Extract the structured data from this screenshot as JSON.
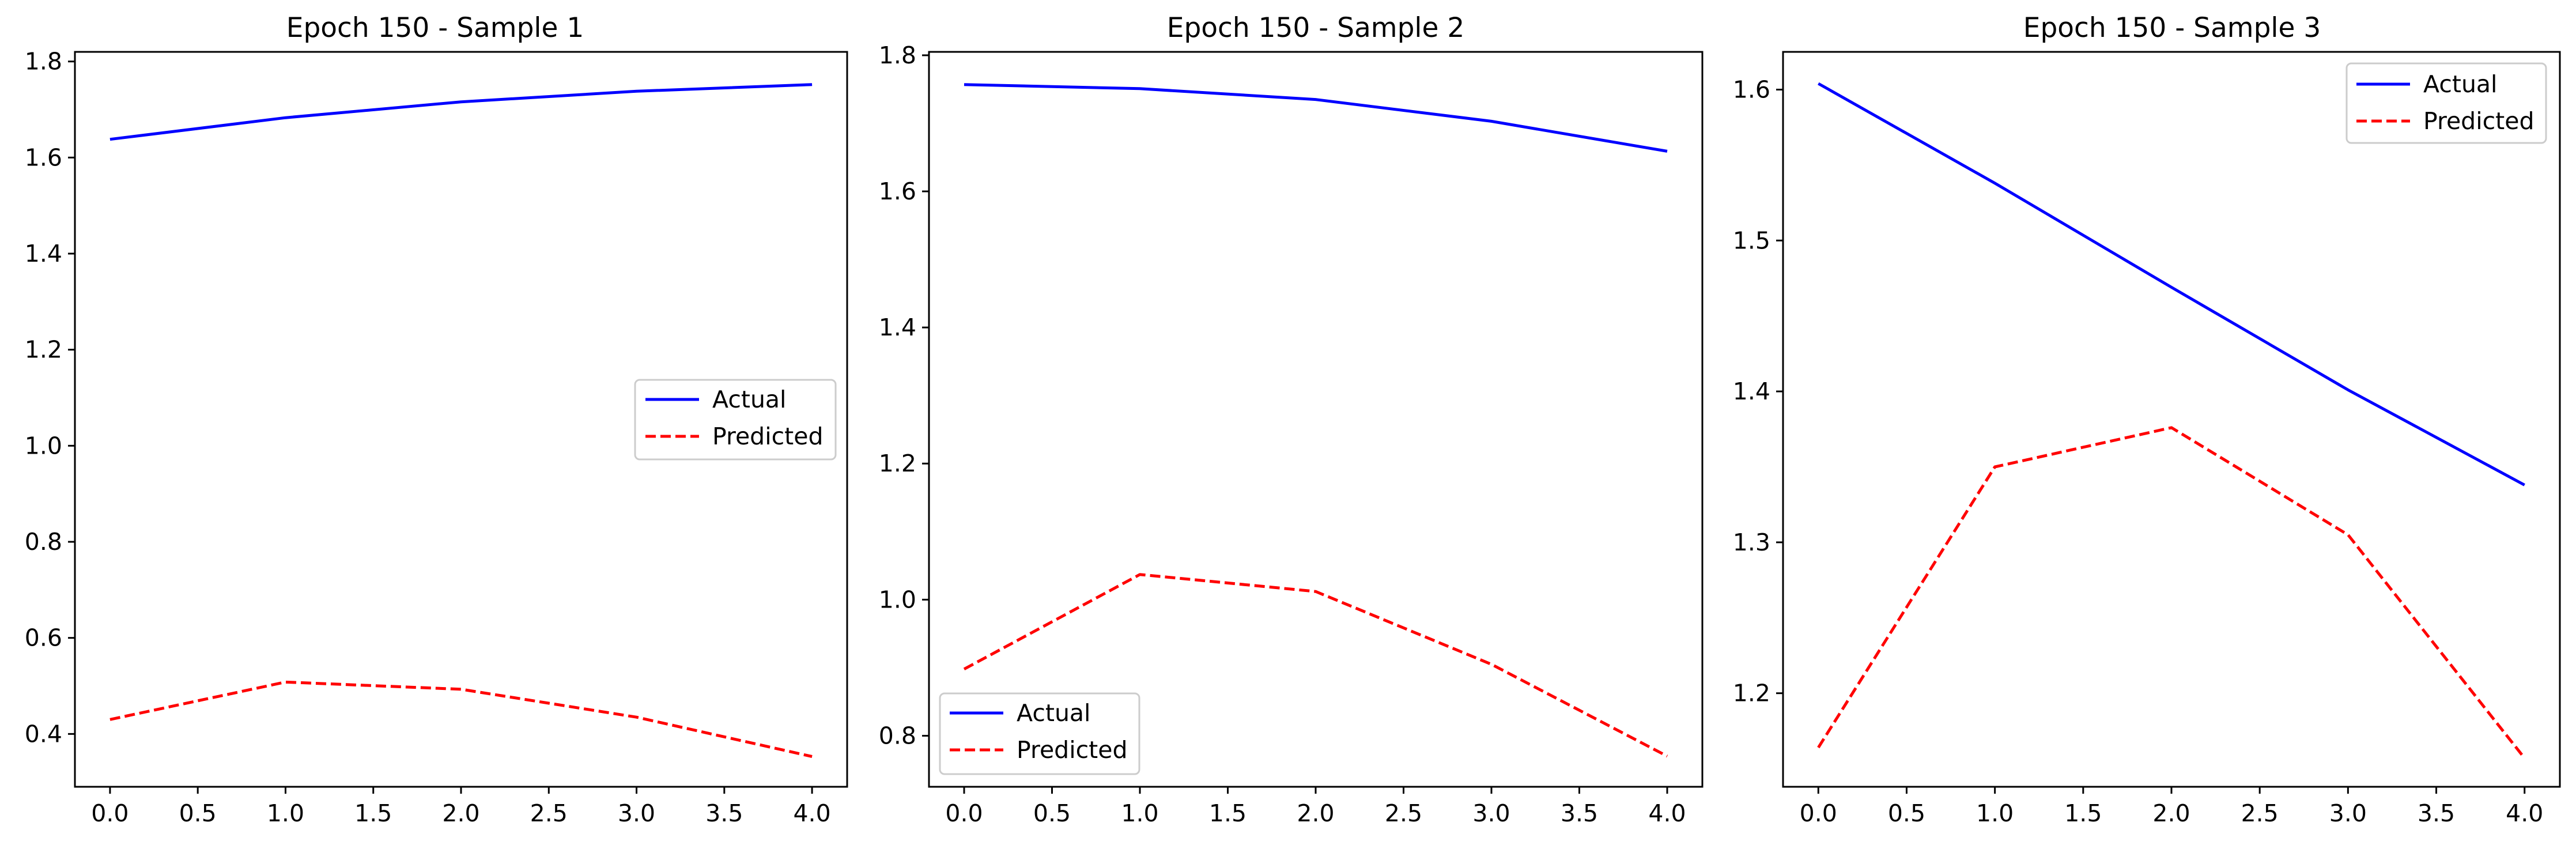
{
  "chart_data": [
    {
      "type": "line",
      "title": "Epoch 150 - Sample 1",
      "xlabel": "",
      "ylabel": "",
      "x": [
        0,
        1,
        2,
        3,
        4
      ],
      "xlim": [
        -0.2,
        4.2
      ],
      "ylim": [
        0.29,
        1.82
      ],
      "xticks": [
        0.0,
        0.5,
        1.0,
        1.5,
        2.0,
        2.5,
        3.0,
        3.5,
        4.0
      ],
      "xtick_labels": [
        "0.0",
        "0.5",
        "1.0",
        "1.5",
        "2.0",
        "2.5",
        "3.0",
        "3.5",
        "4.0"
      ],
      "yticks": [
        0.4,
        0.6,
        0.8,
        1.0,
        1.2,
        1.4,
        1.6,
        1.8
      ],
      "ytick_labels": [
        "0.4",
        "0.6",
        "0.8",
        "1.0",
        "1.2",
        "1.4",
        "1.6",
        "1.8"
      ],
      "grid": false,
      "legend_position": "center-right",
      "series": [
        {
          "name": "Actual",
          "color": "#0000ff",
          "style": "solid",
          "values": [
            1.638,
            1.683,
            1.716,
            1.738,
            1.752
          ]
        },
        {
          "name": "Predicted",
          "color": "#ff0000",
          "style": "dashed",
          "values": [
            0.43,
            0.508,
            0.493,
            0.435,
            0.353
          ]
        }
      ]
    },
    {
      "type": "line",
      "title": "Epoch 150 - Sample 2",
      "xlabel": "",
      "ylabel": "",
      "x": [
        0,
        1,
        2,
        3,
        4
      ],
      "xlim": [
        -0.2,
        4.2
      ],
      "ylim": [
        0.725,
        1.805
      ],
      "xticks": [
        0.0,
        0.5,
        1.0,
        1.5,
        2.0,
        2.5,
        3.0,
        3.5,
        4.0
      ],
      "xtick_labels": [
        "0.0",
        "0.5",
        "1.0",
        "1.5",
        "2.0",
        "2.5",
        "3.0",
        "3.5",
        "4.0"
      ],
      "yticks": [
        0.8,
        1.0,
        1.2,
        1.4,
        1.6,
        1.8
      ],
      "ytick_labels": [
        "0.8",
        "1.0",
        "1.2",
        "1.4",
        "1.6",
        "1.8"
      ],
      "grid": false,
      "legend_position": "lower-left",
      "series": [
        {
          "name": "Actual",
          "color": "#0000ff",
          "style": "solid",
          "values": [
            1.757,
            1.751,
            1.735,
            1.703,
            1.659
          ]
        },
        {
          "name": "Predicted",
          "color": "#ff0000",
          "style": "dashed",
          "values": [
            0.898,
            1.037,
            1.012,
            0.905,
            0.77
          ]
        }
      ]
    },
    {
      "type": "line",
      "title": "Epoch 150 - Sample 3",
      "xlabel": "",
      "ylabel": "",
      "x": [
        0,
        1,
        2,
        3,
        4
      ],
      "xlim": [
        -0.2,
        4.2
      ],
      "ylim": [
        1.138,
        1.625
      ],
      "xticks": [
        0.0,
        0.5,
        1.0,
        1.5,
        2.0,
        2.5,
        3.0,
        3.5,
        4.0
      ],
      "xtick_labels": [
        "0.0",
        "0.5",
        "1.0",
        "1.5",
        "2.0",
        "2.5",
        "3.0",
        "3.5",
        "4.0"
      ],
      "yticks": [
        1.2,
        1.3,
        1.4,
        1.5,
        1.6
      ],
      "ytick_labels": [
        "1.2",
        "1.3",
        "1.4",
        "1.5",
        "1.6"
      ],
      "grid": false,
      "legend_position": "upper-right",
      "series": [
        {
          "name": "Actual",
          "color": "#0000ff",
          "style": "solid",
          "values": [
            1.604,
            1.538,
            1.469,
            1.401,
            1.338
          ]
        },
        {
          "name": "Predicted",
          "color": "#ff0000",
          "style": "dashed",
          "values": [
            1.164,
            1.35,
            1.376,
            1.305,
            1.157
          ]
        }
      ]
    }
  ]
}
